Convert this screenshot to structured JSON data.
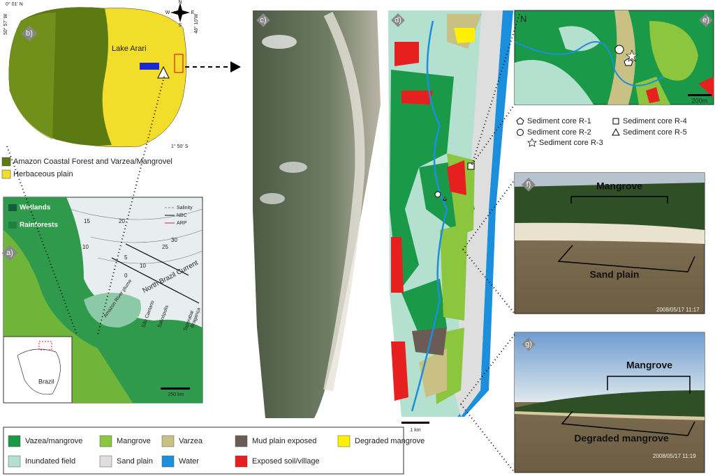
{
  "panel_b": {
    "label": "b)",
    "lat_top": "0° 01' N",
    "lon_left": "50° 57' W",
    "lon_right": "48° 10'W",
    "lat_bottom": "1° 50' S",
    "lake": "Lake Arari",
    "compass": [
      "N",
      "W",
      "E",
      "S"
    ]
  },
  "legend_b": [
    {
      "label": "Amazon Coastal Forest and Varzea/Mangrovel",
      "color": "#5b7a12"
    },
    {
      "label": "Herbaceous plain",
      "color": "#f2dd2a"
    }
  ],
  "panel_a": {
    "label": "a)",
    "wetlands": "Wetlands",
    "rainforests": "Rainforests",
    "key": [
      "Salinity",
      "NBC",
      "ARP"
    ],
    "contours": [
      15,
      20,
      10,
      5,
      10,
      0,
      30,
      25
    ],
    "current": "North Brazil Current",
    "plume": "Amazon River plume",
    "towns": [
      "São Caetano",
      "Salinópolis",
      "Taperabal",
      "Bragança"
    ],
    "country": "Brazil",
    "scale": "250 km"
  },
  "panel_c": {
    "label": "c)"
  },
  "panel_d": {
    "label": "d)",
    "scale": "1 km"
  },
  "panel_e": {
    "label": "e)",
    "north": "N",
    "scale": "200m"
  },
  "sediment_cores": [
    "Sediment core R-1",
    "Sediment core R-2",
    "Sediment core R-3",
    "Sediment core R-4",
    "Sediment core R-5"
  ],
  "panel_f": {
    "label": "f)",
    "upper": "Mangrove",
    "lower": "Sand plain",
    "timestamp": "2008/05/17 11:17"
  },
  "panel_g": {
    "label": "g)",
    "upper": "Mangrove",
    "lower": "Degraded mangrove",
    "timestamp": "2008/05/17 11:19"
  },
  "legend": [
    {
      "label": "Vazea/mangrove",
      "color": "#1a9a48"
    },
    {
      "label": "Mangrove",
      "color": "#8cc63f"
    },
    {
      "label": "Varzea",
      "color": "#c9c083"
    },
    {
      "label": "Mud plain exposed",
      "color": "#6b5b55"
    },
    {
      "label": "Degraded mangrove",
      "color": "#ffef00"
    },
    {
      "label": "Inundated field",
      "color": "#b4e0cf"
    },
    {
      "label": "Sand plain",
      "color": "#dedede"
    },
    {
      "label": "Water",
      "color": "#1b8fdc"
    },
    {
      "label": "Exposed soil/village",
      "color": "#e5201f"
    }
  ]
}
